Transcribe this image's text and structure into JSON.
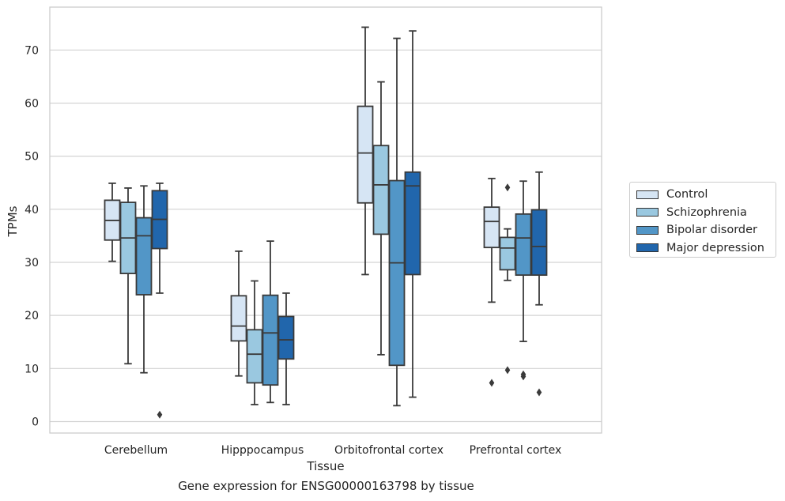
{
  "caption": "Gene expression for ENSG00000163798 by tissue",
  "chart_data": {
    "type": "box",
    "title": "",
    "xlabel": "Tissue",
    "ylabel": "TPMs",
    "ylim": [
      -2,
      78
    ],
    "yticks": [
      0,
      10,
      20,
      30,
      40,
      50,
      60,
      70
    ],
    "grid": "horizontal",
    "legend_position": "right",
    "categories": [
      "Cerebellum",
      "Hipppocampus",
      "Orbitofrontal cortex",
      "Prefrontal cortex"
    ],
    "series": [
      {
        "name": "Control",
        "color": "#d6e5f4",
        "boxes": [
          {
            "whisker_low": 30.2,
            "q1": 34.2,
            "median": 37.9,
            "q3": 41.7,
            "whisker_high": 44.9,
            "outliers": []
          },
          {
            "whisker_low": 8.6,
            "q1": 15.2,
            "median": 18.0,
            "q3": 23.7,
            "whisker_high": 32.1,
            "outliers": []
          },
          {
            "whisker_low": 27.7,
            "q1": 41.2,
            "median": 50.6,
            "q3": 59.4,
            "whisker_high": 74.3,
            "outliers": []
          },
          {
            "whisker_low": 22.5,
            "q1": 32.8,
            "median": 37.7,
            "q3": 40.4,
            "whisker_high": 45.8,
            "outliers": [
              7.3
            ]
          }
        ]
      },
      {
        "name": "Schizophrenia",
        "color": "#9ac8e0",
        "boxes": [
          {
            "whisker_low": 10.9,
            "q1": 27.9,
            "median": 34.6,
            "q3": 41.3,
            "whisker_high": 44.0,
            "outliers": []
          },
          {
            "whisker_low": 3.2,
            "q1": 7.3,
            "median": 12.7,
            "q3": 17.3,
            "whisker_high": 26.5,
            "outliers": []
          },
          {
            "whisker_low": 12.6,
            "q1": 35.3,
            "median": 44.6,
            "q3": 52.0,
            "whisker_high": 64.0,
            "outliers": []
          },
          {
            "whisker_low": 26.6,
            "q1": 28.6,
            "median": 32.7,
            "q3": 34.7,
            "whisker_high": 36.3,
            "outliers": [
              44.1,
              9.7
            ]
          }
        ]
      },
      {
        "name": "Bipolar disorder",
        "color": "#5296c7",
        "boxes": [
          {
            "whisker_low": 9.2,
            "q1": 23.9,
            "median": 35.0,
            "q3": 38.4,
            "whisker_high": 44.4,
            "outliers": []
          },
          {
            "whisker_low": 3.6,
            "q1": 6.9,
            "median": 16.7,
            "q3": 23.8,
            "whisker_high": 34.0,
            "outliers": []
          },
          {
            "whisker_low": 3.0,
            "q1": 10.6,
            "median": 29.9,
            "q3": 45.4,
            "whisker_high": 72.2,
            "outliers": []
          },
          {
            "whisker_low": 15.1,
            "q1": 27.6,
            "median": 34.6,
            "q3": 39.1,
            "whisker_high": 45.3,
            "outliers": [
              8.9,
              8.5
            ]
          }
        ]
      },
      {
        "name": "Major depression",
        "color": "#2166ac",
        "boxes": [
          {
            "whisker_low": 24.2,
            "q1": 32.6,
            "median": 38.1,
            "q3": 43.5,
            "whisker_high": 44.9,
            "outliers": [
              1.3
            ]
          },
          {
            "whisker_low": 3.2,
            "q1": 11.8,
            "median": 15.4,
            "q3": 19.8,
            "whisker_high": 24.2,
            "outliers": []
          },
          {
            "whisker_low": 4.6,
            "q1": 27.7,
            "median": 44.4,
            "q3": 47.0,
            "whisker_high": 73.6,
            "outliers": []
          },
          {
            "whisker_low": 22.0,
            "q1": 27.6,
            "median": 33.0,
            "q3": 39.9,
            "whisker_high": 47.0,
            "outliers": [
              5.5
            ]
          }
        ]
      }
    ]
  }
}
